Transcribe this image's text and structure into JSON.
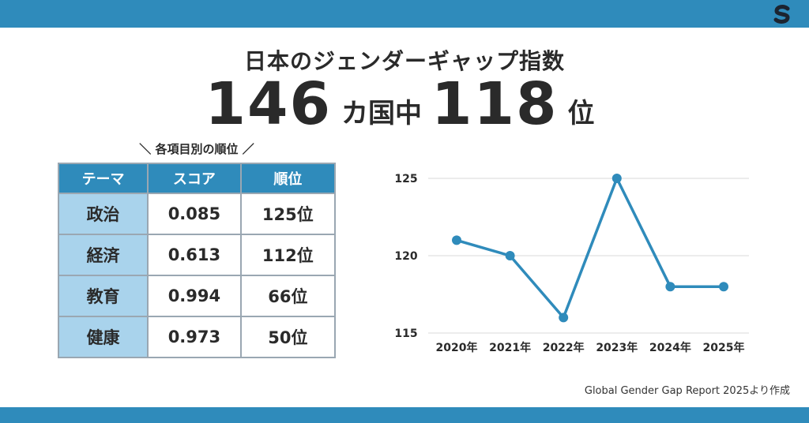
{
  "title": "日本のジェンダーギャップ指数",
  "headline": {
    "total": "146",
    "total_suffix": "カ国中",
    "rank": "118",
    "rank_suffix": "位"
  },
  "subtitle": "＼ 各項目別の順位 ／",
  "table": {
    "headers": [
      "テーマ",
      "スコア",
      "順位"
    ],
    "rows": [
      [
        "政治",
        "0.085",
        "125位"
      ],
      [
        "経済",
        "0.613",
        "112位"
      ],
      [
        "教育",
        "0.994",
        "66位"
      ],
      [
        "健康",
        "0.973",
        "50位"
      ]
    ]
  },
  "chart_data": {
    "type": "line",
    "x": [
      "2020年",
      "2021年",
      "2022年",
      "2023年",
      "2024年",
      "2025年"
    ],
    "series": [
      {
        "values": [
          121,
          120,
          116,
          125,
          118,
          118
        ]
      }
    ],
    "yticks": [
      "115",
      "120",
      "125"
    ],
    "ylim": [
      115,
      125
    ],
    "grid": true,
    "color": "#2f8bbb"
  },
  "source": "Global Gender Gap Report 2025より作成",
  "colors": {
    "accent": "#2f8bbb",
    "table_theme_bg": "#a9d3ec"
  },
  "logo_icon": "brand-logo-icon"
}
